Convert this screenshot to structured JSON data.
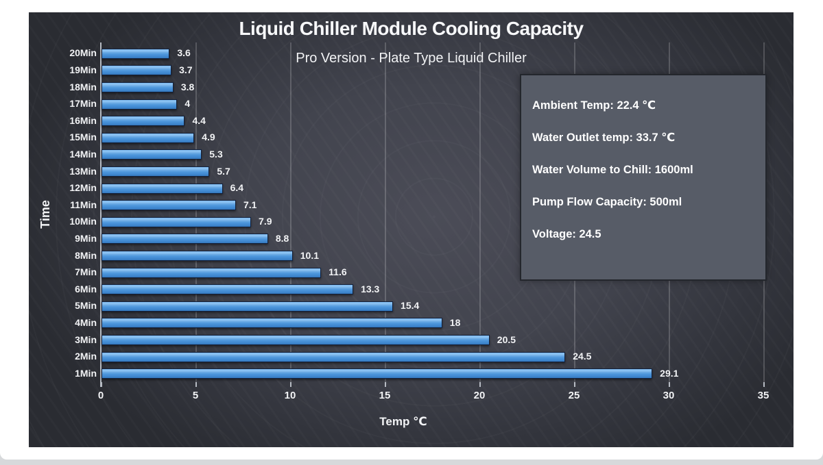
{
  "chart_data": {
    "type": "bar",
    "orientation": "horizontal",
    "title": "Liquid Chiller Module Cooling Capacity",
    "subtitle": "Pro Version - Plate Type Liquid Chiller",
    "xlabel": "Temp ℃",
    "ylabel": "Time",
    "categories": [
      "20Min",
      "19Min",
      "18Min",
      "17Min",
      "16Min",
      "15Min",
      "14Min",
      "13Min",
      "12Min",
      "11Min",
      "10Min",
      "9Min",
      "8Min",
      "7Min",
      "6Min",
      "5Min",
      "4Min",
      "3Min",
      "2Min",
      "1Min"
    ],
    "values": [
      3.6,
      3.7,
      3.8,
      4,
      4.4,
      4.9,
      5.3,
      5.7,
      6.4,
      7.1,
      7.9,
      8.8,
      10.1,
      11.6,
      13.3,
      15.4,
      18,
      20.5,
      24.5,
      29.1
    ],
    "value_labels": [
      "3.6",
      "3.7",
      "3.8",
      "4",
      "4.4",
      "4.9",
      "5.3",
      "5.7",
      "6.4",
      "7.1",
      "7.9",
      "8.8",
      "10.1",
      "11.6",
      "13.3",
      "15.4",
      "18",
      "20.5",
      "24.5",
      "29.1"
    ],
    "xlim": [
      0,
      35
    ],
    "xticks": [
      0,
      5,
      10,
      15,
      20,
      25,
      30,
      35
    ],
    "grid": "vertical",
    "legend": "none"
  },
  "info_panel": {
    "lines": [
      "Ambient Temp: 22.4 ℃",
      "Water Outlet temp: 33.7 ℃",
      "Water Volume to Chill: 1600ml",
      "Pump Flow Capacity: 500ml",
      "Voltage: 24.5"
    ]
  },
  "colors": {
    "panel_background": "#33353d",
    "bar_fill": "#4e97dc",
    "bar_border": "#13203a",
    "gridline": "#4b4f58",
    "axis": "#b7bcc4",
    "text": "#f2f3f5",
    "info_box_background": "#575c67",
    "info_box_border": "#23262c",
    "page_background": "#ffffff",
    "page_strip": "#d7d9db"
  }
}
